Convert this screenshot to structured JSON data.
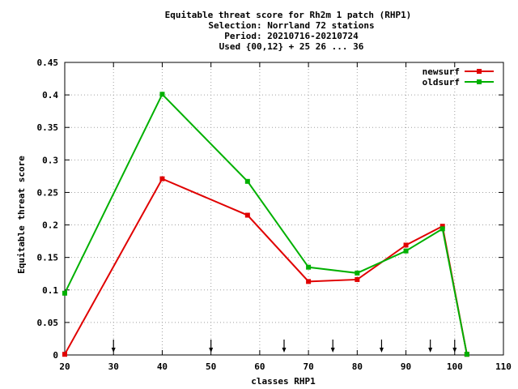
{
  "chart_data": {
    "type": "line",
    "title_lines": [
      "Equitable threat score  for Rh2m 1 patch (RHP1)",
      "Selection: Norrland     72 stations",
      "Period: 20210716-20210724",
      "Used {00,12} + 25 26 ... 36"
    ],
    "xlabel": "classes RHP1",
    "ylabel": "Equitable threat score",
    "xlim": [
      20,
      110
    ],
    "ylim": [
      0,
      0.45
    ],
    "xticks": [
      20,
      30,
      40,
      50,
      60,
      70,
      80,
      90,
      100,
      110
    ],
    "yticks": [
      0,
      0.05,
      0.1,
      0.15,
      0.2,
      0.25,
      0.3,
      0.35,
      0.4,
      0.45
    ],
    "ytick_labels": [
      "0",
      "0.05",
      "0.1",
      "0.15",
      "0.2",
      "0.25",
      "0.3",
      "0.35",
      "0.4",
      "0.45"
    ],
    "grid": true,
    "legend_position": "top-right",
    "class_markers": [
      30,
      50,
      65,
      75,
      85,
      95,
      100
    ],
    "series": [
      {
        "name": "newsurf",
        "color": "#e00000",
        "x": [
          20,
          40,
          57.5,
          70,
          80,
          90,
          97.5,
          102.5
        ],
        "values": [
          0.001,
          0.271,
          0.215,
          0.113,
          0.116,
          0.169,
          0.198,
          0.001
        ]
      },
      {
        "name": "oldsurf",
        "color": "#00b000",
        "x": [
          20,
          40,
          57.5,
          70,
          80,
          90,
          97.5,
          102.5
        ],
        "values": [
          0.095,
          0.401,
          0.267,
          0.135,
          0.126,
          0.16,
          0.194,
          0.001
        ]
      }
    ]
  }
}
